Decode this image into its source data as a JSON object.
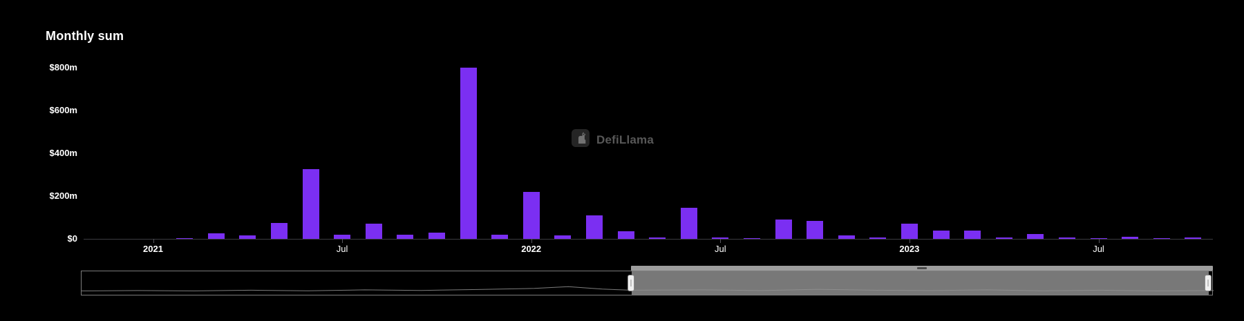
{
  "title": "Monthly sum",
  "watermark": {
    "text": "DefiLlama",
    "logo": "llama-logo-icon"
  },
  "colors": {
    "background": "#000000",
    "bar": "#7b2ff2",
    "axis": "#3c3c42",
    "text": "#ffffff",
    "watermark_text": "#8d8d8d",
    "navigator_border": "#7c7c7c",
    "navigator_fill": "#929292",
    "navigator_handle": "#efefef",
    "shadow_line": "#7d7d7d"
  },
  "chart_data": {
    "type": "bar",
    "title": "Monthly sum",
    "unit": "USD millions",
    "grid": false,
    "legend_position": "none",
    "ylim": [
      0,
      800
    ],
    "categories": [
      "2021-01",
      "2021-02",
      "2021-03",
      "2021-04",
      "2021-05",
      "2021-06",
      "2021-07",
      "2021-08",
      "2021-09",
      "2021-10",
      "2021-11",
      "2021-12",
      "2022-01",
      "2022-02",
      "2022-03",
      "2022-04",
      "2022-05",
      "2022-06",
      "2022-07",
      "2022-08",
      "2022-09",
      "2022-10",
      "2022-11",
      "2022-12",
      "2023-01",
      "2023-02",
      "2023-03",
      "2023-04",
      "2023-05",
      "2023-06",
      "2023-07",
      "2023-08",
      "2023-09",
      "2023-10"
    ],
    "values": [
      0,
      2,
      25,
      15,
      75,
      325,
      18,
      70,
      18,
      30,
      800,
      20,
      220,
      15,
      110,
      35,
      8,
      145,
      5,
      3,
      90,
      85,
      15,
      5,
      70,
      40,
      40,
      8,
      22,
      6,
      2,
      10,
      3,
      8
    ],
    "y_ticks": [
      {
        "value": 0,
        "label": "$0"
      },
      {
        "value": 200,
        "label": "$200m"
      },
      {
        "value": 400,
        "label": "$400m"
      },
      {
        "value": 600,
        "label": "$600m"
      },
      {
        "value": 800,
        "label": "$800m"
      }
    ],
    "x_ticks": [
      {
        "index": 0,
        "label": "2021",
        "bold": true
      },
      {
        "index": 6,
        "label": "Jul",
        "bold": false
      },
      {
        "index": 12,
        "label": "2022",
        "bold": true
      },
      {
        "index": 18,
        "label": "Jul",
        "bold": false
      },
      {
        "index": 24,
        "label": "2023",
        "bold": true
      },
      {
        "index": 30,
        "label": "Jul",
        "bold": false
      }
    ]
  },
  "navigator": {
    "selected_start_pct": 48.6,
    "selected_end_pct": 99.6,
    "shadow_points": [
      [
        0,
        0.06
      ],
      [
        0.05,
        0.08
      ],
      [
        0.1,
        0.06
      ],
      [
        0.15,
        0.1
      ],
      [
        0.2,
        0.07
      ],
      [
        0.25,
        0.12
      ],
      [
        0.3,
        0.09
      ],
      [
        0.35,
        0.14
      ],
      [
        0.4,
        0.2
      ],
      [
        0.43,
        0.3
      ],
      [
        0.46,
        0.16
      ],
      [
        0.486,
        0.1
      ],
      [
        0.55,
        0.12
      ],
      [
        0.6,
        0.08
      ],
      [
        0.65,
        0.15
      ],
      [
        0.7,
        0.1
      ],
      [
        0.75,
        0.08
      ],
      [
        0.8,
        0.12
      ],
      [
        0.85,
        0.07
      ],
      [
        0.9,
        0.1
      ],
      [
        0.95,
        0.06
      ],
      [
        1,
        0.08
      ]
    ]
  }
}
